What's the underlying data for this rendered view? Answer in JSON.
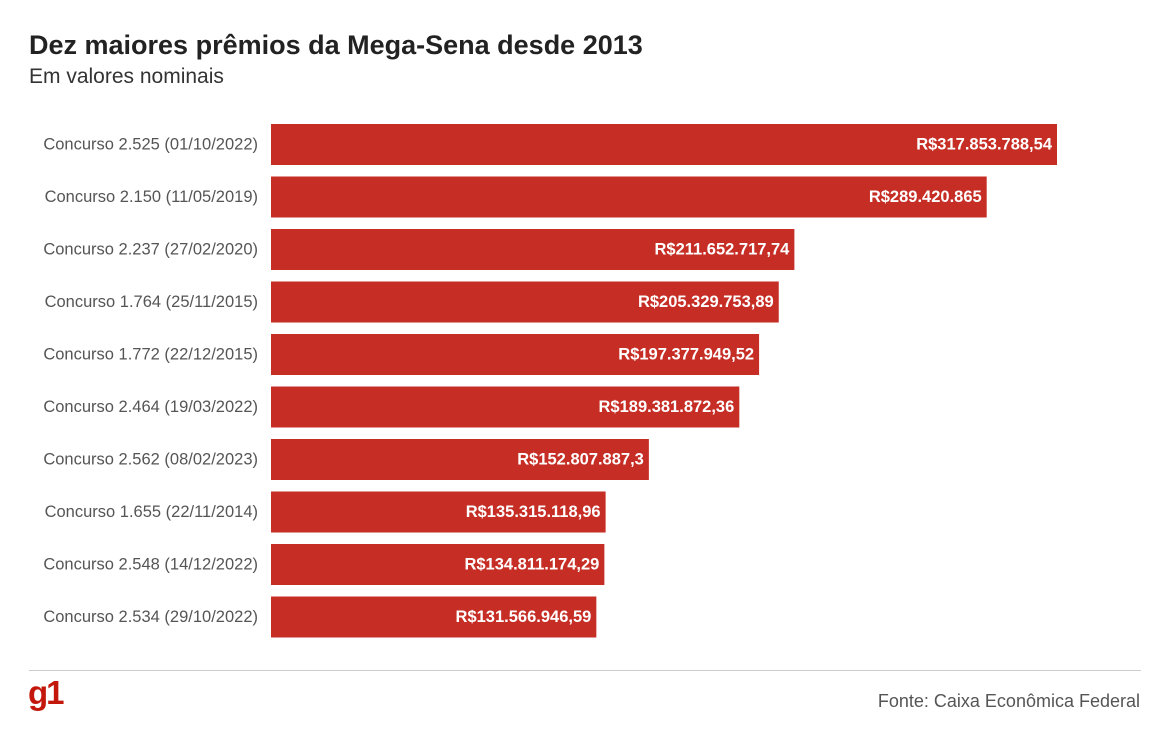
{
  "header": {
    "title": "Dez maiores prêmios da Mega-Sena desde 2013",
    "subtitle": "Em valores nominais"
  },
  "footer": {
    "logo": "g1",
    "source": "Fonte: Caixa Econômica Federal"
  },
  "colors": {
    "bar": "#c62d25",
    "bar_label": "#ffffff",
    "category_label": "#555555",
    "logo": "#c4170c"
  },
  "chart_data": {
    "type": "bar",
    "orientation": "horizontal",
    "title": "Dez maiores prêmios da Mega-Sena desde 2013",
    "subtitle": "Em valores nominais",
    "xlabel": "",
    "ylabel": "",
    "grid": false,
    "legend": "none",
    "categories": [
      "Concurso 2.525 (01/10/2022)",
      "Concurso 2.150 (11/05/2019)",
      "Concurso 2.237 (27/02/2020)",
      "Concurso 1.764 (25/11/2015)",
      "Concurso 1.772 (22/12/2015)",
      "Concurso 2.464 (19/03/2022)",
      "Concurso 2.562 (08/02/2023)",
      "Concurso 1.655 (22/11/2014)",
      "Concurso 2.548 (14/12/2022)",
      "Concurso 2.534 (29/10/2022)"
    ],
    "values": [
      317853788.54,
      289420865,
      211652717.74,
      205329753.89,
      197377949.52,
      189381872.36,
      152807887.3,
      135315118.96,
      134811174.29,
      131566946.59
    ],
    "value_labels": [
      "R$317.853.788,54",
      "R$289.420.865",
      "R$211.652.717,74",
      "R$205.329.753,89",
      "R$197.377.949,52",
      "R$189.381.872,36",
      "R$152.807.887,3",
      "R$135.315.118,96",
      "R$134.811.174,29",
      "R$131.566.946,59"
    ],
    "xlim": [
      0,
      317853788.54
    ]
  }
}
